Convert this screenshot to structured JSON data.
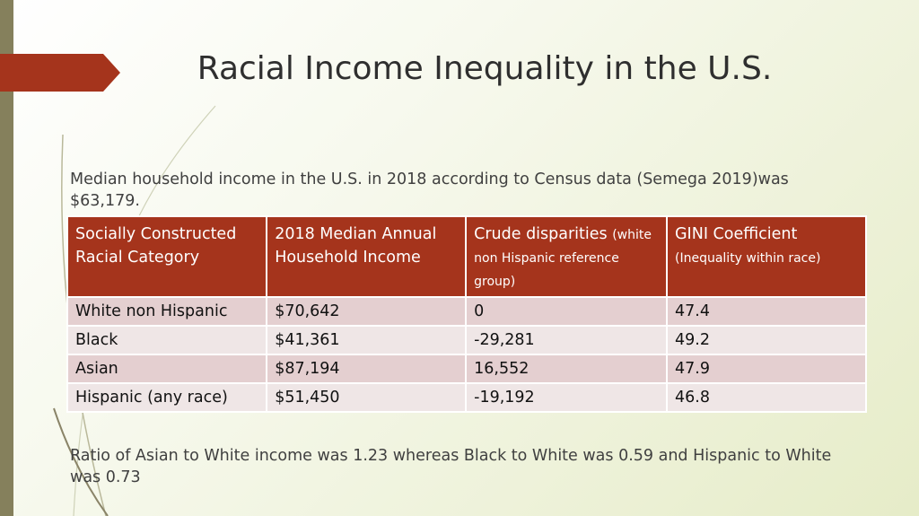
{
  "slide": {
    "title": "Racial Income Inequality in the U.S."
  },
  "bullets": [
    {
      "icon": "bullet-arrow-icon",
      "marker": "",
      "text": "Median household income in the U.S. in 2018 according to Census data (Semega 2019)was $63,179."
    },
    {
      "icon": "bullet-arrow-icon",
      "marker": "",
      "text": "Ratio of Asian to White income was 1.23 whereas Black to White was 0.59 and Hispanic to White was 0.73"
    }
  ],
  "table": {
    "headers": [
      {
        "main": "Socially Constructed Racial Category",
        "sub": ""
      },
      {
        "main": "2018 Median Annual Household Income",
        "sub": ""
      },
      {
        "main": "Crude disparities ",
        "sub": "(white non Hispanic reference group)"
      },
      {
        "main": "GINI Coefficient",
        "sub": "(Inequality within race)"
      }
    ],
    "rows": [
      [
        "White non Hispanic",
        "$70,642",
        "0",
        "47.4"
      ],
      [
        "Black",
        "$41,361",
        "-29,281",
        "49.2"
      ],
      [
        "Asian",
        "$87,194",
        "16,552",
        "47.9"
      ],
      [
        "Hispanic (any race)",
        "$51,450",
        "-19,192",
        "46.8"
      ]
    ]
  },
  "colors": {
    "accent": "#a5341c",
    "side_bar": "#85805c",
    "row_odd": "#e4cfd0",
    "row_even": "#efe6e6"
  }
}
